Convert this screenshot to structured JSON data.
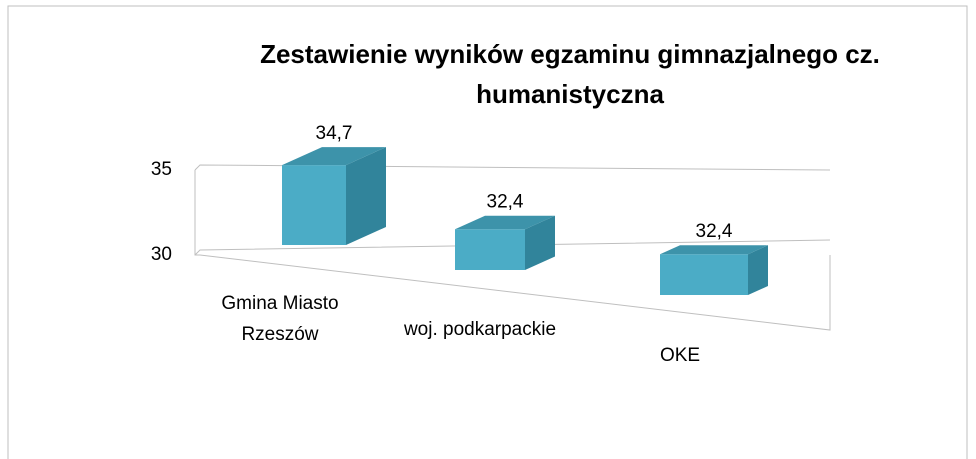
{
  "chart_data": {
    "type": "bar3d",
    "title": "Zestawienie wyników egzaminu gimnazjalnego cz. humanistyczna",
    "categories": [
      "Gmina Miasto Rzeszów",
      "woj. podkarpackie",
      "OKE"
    ],
    "values": [
      34.7,
      32.4,
      32.4
    ],
    "value_labels": [
      "34,7",
      "32,4",
      "32,4"
    ],
    "color": "#4bacc6",
    "ylim": [
      30,
      35
    ],
    "yticks": [
      30,
      35
    ],
    "grid": true
  }
}
